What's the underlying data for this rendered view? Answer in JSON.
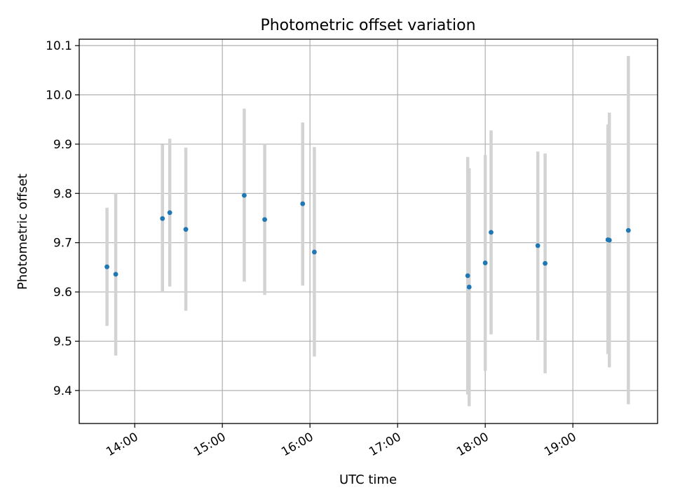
{
  "chart_data": {
    "type": "scatter",
    "title": "Photometric offset variation",
    "xlabel": "UTC time",
    "ylabel": "Photometric offset",
    "x_unit": "UTC time of day (HH:MM)",
    "xlim": [
      "13:22",
      "19:58"
    ],
    "ylim": [
      9.333,
      10.113
    ],
    "grid": true,
    "x_ticks": [
      "14:00",
      "15:00",
      "16:00",
      "17:00",
      "18:00",
      "19:00"
    ],
    "y_ticks": [
      9.4,
      9.5,
      9.6,
      9.7,
      9.8,
      9.9,
      10.0,
      10.1
    ],
    "y_tick_labels": [
      "9.4",
      "9.5",
      "9.6",
      "9.7",
      "9.8",
      "9.9",
      "10.0",
      "10.1"
    ],
    "marker_color": "#1f77b4",
    "errorbar_color": "#d3d3d3",
    "points": [
      {
        "x": "13:41",
        "y": 9.651,
        "ylow": 9.531,
        "yhigh": 9.771
      },
      {
        "x": "13:47",
        "y": 9.636,
        "ylow": 9.471,
        "yhigh": 9.8
      },
      {
        "x": "14:19",
        "y": 9.749,
        "ylow": 9.6,
        "yhigh": 9.899
      },
      {
        "x": "14:24",
        "y": 9.761,
        "ylow": 9.611,
        "yhigh": 9.911
      },
      {
        "x": "14:35",
        "y": 9.727,
        "ylow": 9.562,
        "yhigh": 9.893
      },
      {
        "x": "15:15",
        "y": 9.796,
        "ylow": 9.621,
        "yhigh": 9.972
      },
      {
        "x": "15:29",
        "y": 9.747,
        "ylow": 9.594,
        "yhigh": 9.9
      },
      {
        "x": "15:55",
        "y": 9.779,
        "ylow": 9.613,
        "yhigh": 9.944
      },
      {
        "x": "16:03",
        "y": 9.681,
        "ylow": 9.469,
        "yhigh": 9.894
      },
      {
        "x": "17:48",
        "y": 9.633,
        "ylow": 9.392,
        "yhigh": 9.874
      },
      {
        "x": "17:49",
        "y": 9.61,
        "ylow": 9.368,
        "yhigh": 9.851
      },
      {
        "x": "18:00",
        "y": 9.659,
        "ylow": 9.44,
        "yhigh": 9.878
      },
      {
        "x": "18:04",
        "y": 9.721,
        "ylow": 9.514,
        "yhigh": 9.928
      },
      {
        "x": "18:36",
        "y": 9.694,
        "ylow": 9.502,
        "yhigh": 9.885
      },
      {
        "x": "18:41",
        "y": 9.658,
        "ylow": 9.435,
        "yhigh": 9.881
      },
      {
        "x": "19:24",
        "y": 9.706,
        "ylow": 9.474,
        "yhigh": 9.94
      },
      {
        "x": "19:25",
        "y": 9.705,
        "ylow": 9.447,
        "yhigh": 9.964
      },
      {
        "x": "19:38",
        "y": 9.725,
        "ylow": 9.372,
        "yhigh": 10.079
      }
    ]
  }
}
